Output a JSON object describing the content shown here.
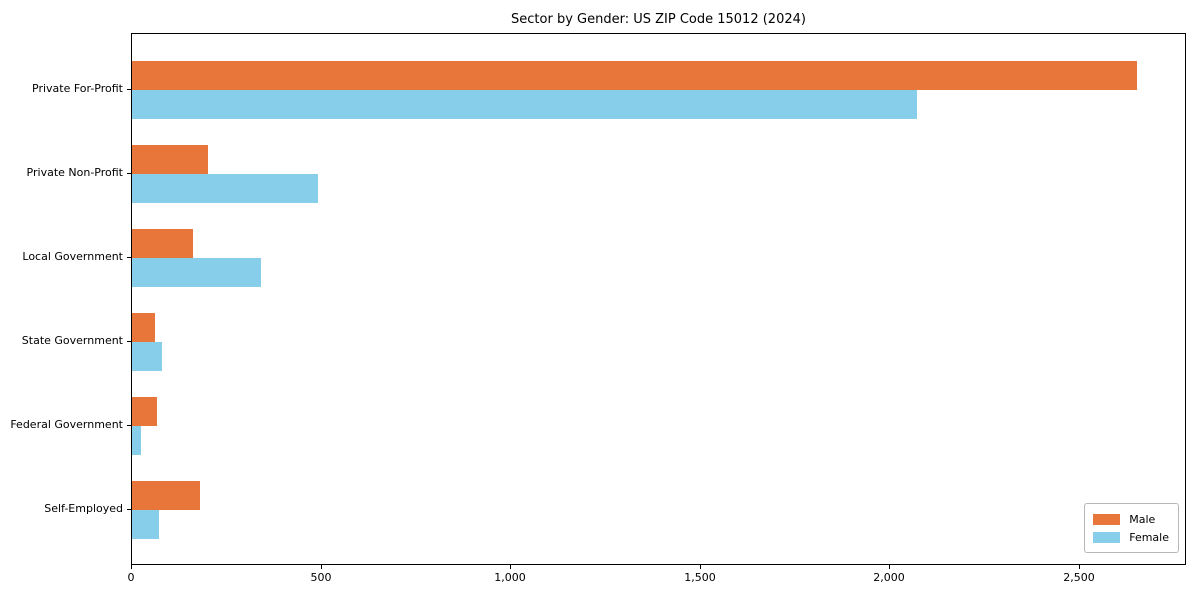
{
  "chart_data": {
    "type": "bar",
    "orientation": "horizontal",
    "title": "Sector by Gender: US ZIP Code 15012 (2024)",
    "categories": [
      "Private For-Profit",
      "Private Non-Profit",
      "Local Government",
      "State Government",
      "Federal Government",
      "Self-Employed"
    ],
    "series": [
      {
        "name": "Male",
        "color": "#e8763b",
        "values": [
          2650,
          200,
          160,
          60,
          65,
          180
        ]
      },
      {
        "name": "Female",
        "color": "#87ceeb",
        "values": [
          2070,
          490,
          340,
          80,
          25,
          70
        ]
      }
    ],
    "xlabel": "",
    "ylabel": "",
    "xlim": [
      0,
      2782
    ],
    "xticks": {
      "values": [
        0,
        500,
        1000,
        1500,
        2000,
        2500
      ],
      "labels": [
        "0",
        "500",
        "1,000",
        "1,500",
        "2,000",
        "2,500"
      ]
    },
    "grid": false,
    "legend": {
      "position": "lower right",
      "entries": [
        {
          "label": "Male",
          "color": "#e8763b"
        },
        {
          "label": "Female",
          "color": "#87ceeb"
        }
      ]
    },
    "frame_color": "#000000",
    "background_color": "#ffffff"
  }
}
